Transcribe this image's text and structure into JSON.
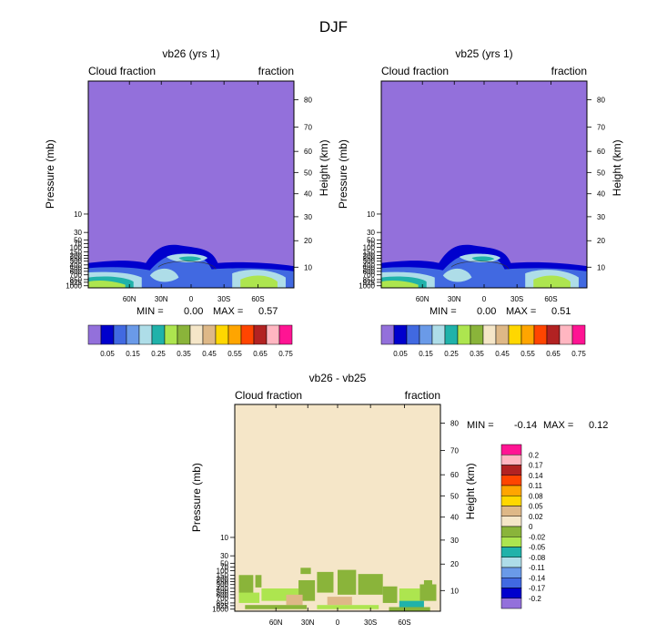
{
  "figure_title": "DJF",
  "chart_data": [
    {
      "type": "contour",
      "title": "vb26 (yrs 1)",
      "left_label": "Cloud fraction",
      "right_label": "fraction",
      "ylabel": "Pressure (mb)",
      "ylabel_right": "Height (km)",
      "xticks": [
        "60N",
        "30N",
        "0",
        "30S",
        "60S"
      ],
      "pressure_ticks": [
        "10",
        "30",
        "50",
        "70",
        "100",
        "150",
        "200",
        "250",
        "300",
        "400",
        "500",
        "600",
        "700",
        "850",
        "925",
        "1000"
      ],
      "pressure_tick_labels": [
        "10",
        "30",
        "50",
        "70",
        "100",
        "150",
        "200",
        "250",
        "300",
        "400",
        "500",
        "600",
        "700",
        "850",
        "925",
        "1000"
      ],
      "height_ticks": [
        "80",
        "70",
        "60",
        "50",
        "40",
        "30",
        "20",
        "10"
      ],
      "stats": {
        "min_label": "MIN =",
        "min": "0.00",
        "max_label": "MAX =",
        "max": "0.57"
      },
      "colorbar": {
        "orientation": "horizontal",
        "labels": [
          "0.05",
          "0.15",
          "0.25",
          "0.35",
          "0.45",
          "0.55",
          "0.65",
          "0.75"
        ],
        "colors": [
          "#9370DB",
          "#0000CD",
          "#4169E1",
          "#6A9AE8",
          "#AEDDE8",
          "#20B2AA",
          "#ADE54F",
          "#8AB43A",
          "#F5E6C8",
          "#DEB887",
          "#FFD700",
          "#FFA500",
          "#FF4500",
          "#B22222",
          "#FFB6C1",
          "#FF1493"
        ]
      },
      "field": {
        "background": "#9370DB",
        "bands": [
          {
            "name": "blue",
            "color": "#0000CD"
          },
          {
            "name": "royal",
            "color": "#4169E1"
          },
          {
            "name": "light",
            "color": "#AEDDE8"
          },
          {
            "name": "teal",
            "color": "#20B2AA"
          },
          {
            "name": "green",
            "color": "#ADE54F"
          }
        ]
      }
    },
    {
      "type": "contour",
      "title": "vb25 (yrs 1)",
      "left_label": "Cloud fraction",
      "right_label": "fraction",
      "ylabel": "Pressure (mb)",
      "ylabel_right": "Height (km)",
      "xticks": [
        "60N",
        "30N",
        "0",
        "30S",
        "60S"
      ],
      "pressure_ticks": [
        "10",
        "30",
        "50",
        "70",
        "100",
        "150",
        "200",
        "250",
        "300",
        "400",
        "500",
        "600",
        "700",
        "850",
        "925",
        "1000"
      ],
      "pressure_tick_labels": [
        "10",
        "30",
        "50",
        "70",
        "100",
        "150",
        "200",
        "250",
        "300",
        "400",
        "500",
        "600",
        "700",
        "850",
        "925",
        "1000"
      ],
      "height_ticks": [
        "80",
        "70",
        "60",
        "50",
        "40",
        "30",
        "20",
        "10"
      ],
      "stats": {
        "min_label": "MIN =",
        "min": "0.00",
        "max_label": "MAX =",
        "max": "0.51"
      },
      "colorbar": {
        "orientation": "horizontal",
        "labels": [
          "0.05",
          "0.15",
          "0.25",
          "0.35",
          "0.45",
          "0.55",
          "0.65",
          "0.75"
        ],
        "colors": [
          "#9370DB",
          "#0000CD",
          "#4169E1",
          "#6A9AE8",
          "#AEDDE8",
          "#20B2AA",
          "#ADE54F",
          "#8AB43A",
          "#F5E6C8",
          "#DEB887",
          "#FFD700",
          "#FFA500",
          "#FF4500",
          "#B22222",
          "#FFB6C1",
          "#FF1493"
        ]
      },
      "field": {
        "background": "#9370DB",
        "bands": [
          {
            "name": "blue",
            "color": "#0000CD"
          },
          {
            "name": "royal",
            "color": "#4169E1"
          },
          {
            "name": "light",
            "color": "#AEDDE8"
          },
          {
            "name": "teal",
            "color": "#20B2AA"
          },
          {
            "name": "green",
            "color": "#ADE54F"
          }
        ]
      }
    },
    {
      "type": "contour",
      "title": "vb26 - vb25",
      "left_label": "Cloud fraction",
      "right_label": "fraction",
      "ylabel": "Pressure (mb)",
      "ylabel_right": "Height (km)",
      "xticks": [
        "60N",
        "30N",
        "0",
        "30S",
        "60S"
      ],
      "pressure_ticks": [
        "10",
        "30",
        "50",
        "70",
        "100",
        "150",
        "200",
        "250",
        "300",
        "400",
        "500",
        "600",
        "700",
        "850",
        "925",
        "1000"
      ],
      "pressure_tick_labels": [
        "10",
        "30",
        "50",
        "70",
        "100",
        "150",
        "200",
        "250",
        "300",
        "400",
        "500",
        "600",
        "700",
        "850",
        "925",
        "1000"
      ],
      "height_ticks": [
        "80",
        "70",
        "60",
        "50",
        "40",
        "30",
        "20",
        "10"
      ],
      "stats": {
        "min_label": "MIN =",
        "min": "-0.14",
        "max_label": "MAX =",
        "max": "0.12"
      },
      "colorbar": {
        "orientation": "vertical",
        "labels": [
          "0.2",
          "0.17",
          "0.14",
          "0.11",
          "0.08",
          "0.05",
          "0.02",
          "0",
          "-0.02",
          "-0.05",
          "-0.08",
          "-0.11",
          "-0.14",
          "-0.17",
          "-0.2"
        ],
        "colors": [
          "#FF1493",
          "#FFB6C1",
          "#B22222",
          "#FF4500",
          "#FFA500",
          "#FFD700",
          "#DEB887",
          "#F5E6C8",
          "#8AB43A",
          "#ADE54F",
          "#20B2AA",
          "#AEDDE8",
          "#6A9AE8",
          "#4169E1",
          "#0000CD",
          "#9370DB"
        ]
      },
      "field": {
        "background": "#F5E6C8",
        "bands": [
          {
            "name": "green",
            "color": "#8AB43A"
          },
          {
            "name": "lightgreen",
            "color": "#ADE54F"
          },
          {
            "name": "tan",
            "color": "#DEB887"
          },
          {
            "name": "teal",
            "color": "#20B2AA"
          }
        ]
      }
    }
  ]
}
